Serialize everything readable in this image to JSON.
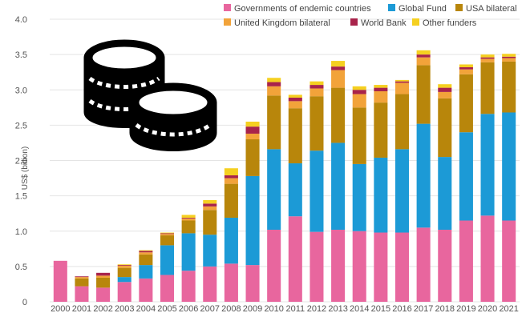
{
  "chart_data": {
    "type": "bar",
    "stacked": true,
    "ylabel": "US$ (billion)",
    "ylim": [
      0,
      4.0
    ],
    "yticks": [
      "0",
      "0.5",
      "1.0",
      "1.5",
      "2.0",
      "2.5",
      "3.0",
      "3.5",
      "4.0"
    ],
    "grid": true,
    "legend_position": "top",
    "categories": [
      "2000",
      "2001",
      "2002",
      "2003",
      "2004",
      "2005",
      "2006",
      "2007",
      "2008",
      "2009",
      "2010",
      "2011",
      "2012",
      "2013",
      "2014",
      "2015",
      "2016",
      "2017",
      "2018",
      "2019",
      "2020",
      "2021"
    ],
    "series": [
      {
        "name": "Governments of endemic countries",
        "color": "#e8669e",
        "values": [
          0.58,
          0.22,
          0.2,
          0.28,
          0.33,
          0.38,
          0.44,
          0.5,
          0.54,
          0.52,
          1.02,
          1.21,
          0.99,
          1.02,
          1.0,
          0.98,
          0.98,
          1.05,
          1.02,
          1.15,
          1.22,
          1.15
        ]
      },
      {
        "name": "Global Fund",
        "color": "#1c9ad6",
        "values": [
          0.0,
          0.0,
          0.0,
          0.07,
          0.19,
          0.42,
          0.53,
          0.45,
          0.65,
          1.26,
          1.14,
          0.75,
          1.15,
          1.23,
          0.95,
          1.06,
          1.18,
          1.47,
          1.03,
          1.25,
          1.44,
          1.53
        ]
      },
      {
        "name": "USA bilateral",
        "color": "#b8860b",
        "values": [
          0.0,
          0.11,
          0.14,
          0.13,
          0.15,
          0.14,
          0.18,
          0.35,
          0.48,
          0.52,
          0.76,
          0.78,
          0.77,
          0.78,
          0.8,
          0.78,
          0.78,
          0.83,
          0.83,
          0.82,
          0.73,
          0.72
        ]
      },
      {
        "name": "United Kingdom bilateral",
        "color": "#f2a33a",
        "values": [
          0.0,
          0.02,
          0.03,
          0.03,
          0.03,
          0.02,
          0.03,
          0.05,
          0.08,
          0.08,
          0.13,
          0.1,
          0.11,
          0.25,
          0.19,
          0.16,
          0.16,
          0.11,
          0.09,
          0.07,
          0.05,
          0.05
        ]
      },
      {
        "name": "World Bank",
        "color": "#a8234b",
        "values": [
          0.0,
          0.01,
          0.04,
          0.01,
          0.02,
          0.01,
          0.01,
          0.04,
          0.04,
          0.1,
          0.06,
          0.05,
          0.05,
          0.05,
          0.06,
          0.05,
          0.02,
          0.04,
          0.06,
          0.03,
          0.02,
          0.02
        ]
      },
      {
        "name": "Other funders",
        "color": "#f5d020",
        "values": [
          0.0,
          0.0,
          0.0,
          0.01,
          0.01,
          0.01,
          0.04,
          0.05,
          0.1,
          0.07,
          0.06,
          0.04,
          0.05,
          0.08,
          0.05,
          0.04,
          0.02,
          0.06,
          0.05,
          0.04,
          0.04,
          0.04
        ]
      }
    ]
  },
  "overlay_icon": "coins-stack-icon"
}
